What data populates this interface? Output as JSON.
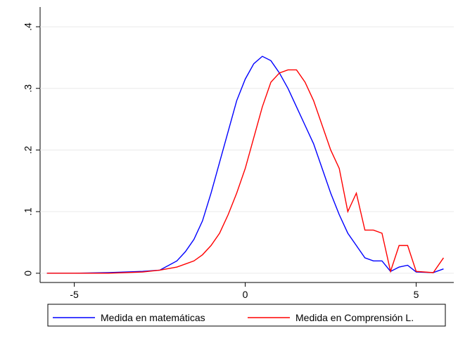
{
  "chart_data": {
    "type": "line",
    "x": [
      -5.8,
      -5,
      -4,
      -3,
      -2.5,
      -2,
      -1.75,
      -1.5,
      -1.25,
      -1,
      -0.75,
      -0.5,
      -0.25,
      0,
      0.25,
      0.5,
      0.75,
      1,
      1.25,
      1.5,
      1.75,
      2,
      2.25,
      2.5,
      2.75,
      3,
      3.25,
      3.5,
      3.75,
      4,
      4.25,
      4.5,
      4.75,
      5,
      5.5,
      5.8
    ],
    "series": [
      {
        "name": "Medida en matemáticas",
        "color": "#0000ff",
        "values": [
          0,
          0,
          0.001,
          0.003,
          0.005,
          0.02,
          0.035,
          0.055,
          0.085,
          0.13,
          0.18,
          0.23,
          0.28,
          0.315,
          0.34,
          0.352,
          0.345,
          0.325,
          0.3,
          0.27,
          0.24,
          0.21,
          0.17,
          0.13,
          0.095,
          0.065,
          0.045,
          0.025,
          0.02,
          0.02,
          0.003,
          0.01,
          0.013,
          0.002,
          0.001,
          0.007
        ]
      },
      {
        "name": "Medida en Comprensión L.",
        "color": "#ff0000",
        "values": [
          0,
          0,
          0,
          0.002,
          0.005,
          0.01,
          0.015,
          0.02,
          0.03,
          0.045,
          0.065,
          0.095,
          0.13,
          0.17,
          0.22,
          0.27,
          0.31,
          0.325,
          0.33,
          0.33,
          0.31,
          0.28,
          0.24,
          0.2,
          0.17,
          0.1,
          0.13,
          0.07,
          0.07,
          0.065,
          0.003,
          0.045,
          0.045,
          0.003,
          0.001,
          0.025
        ]
      }
    ],
    "xlim": [
      -6.0,
      6.1
    ],
    "xticks": [
      -5,
      0,
      5
    ],
    "ylim": [
      -0.015,
      0.432
    ],
    "yticks": [
      {
        "value": 0,
        "label": "0"
      },
      {
        "value": 0.1,
        "label": ".1"
      },
      {
        "value": 0.2,
        "label": ".2"
      },
      {
        "value": 0.3,
        "label": ".3"
      },
      {
        "value": 0.4,
        "label": ".4"
      }
    ],
    "grid": true,
    "legend": "bottom"
  }
}
